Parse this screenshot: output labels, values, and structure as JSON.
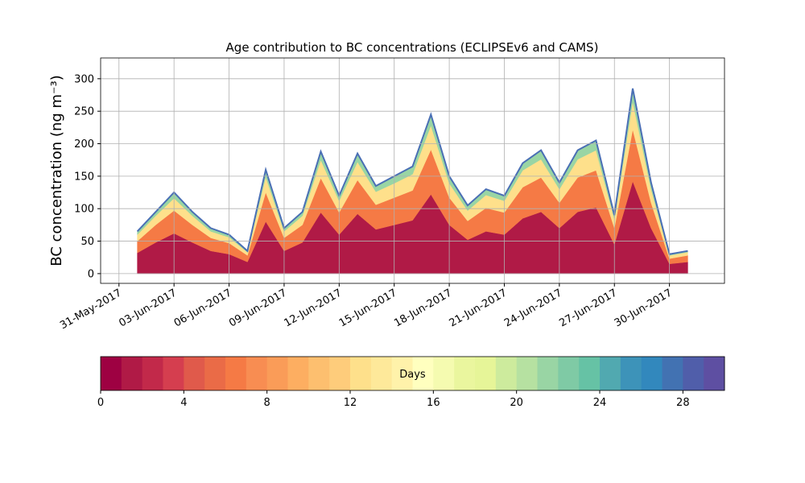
{
  "chart_data": {
    "type": "stacked_area",
    "title": "Age contribution to BC concentrations (ECLIPSEv6 and CAMS)",
    "ylabel": "BC concentration (ng m⁻³)",
    "x": [
      "2017-06-01",
      "2017-06-02",
      "2017-06-03",
      "2017-06-04",
      "2017-06-05",
      "2017-06-06",
      "2017-06-07",
      "2017-06-08",
      "2017-06-09",
      "2017-06-10",
      "2017-06-11",
      "2017-06-12",
      "2017-06-13",
      "2017-06-14",
      "2017-06-15",
      "2017-06-16",
      "2017-06-17",
      "2017-06-18",
      "2017-06-19",
      "2017-06-20",
      "2017-06-21",
      "2017-06-22",
      "2017-06-23",
      "2017-06-24",
      "2017-06-25",
      "2017-06-26",
      "2017-06-27",
      "2017-06-28",
      "2017-06-29",
      "2017-06-30",
      "2017-07-01"
    ],
    "series": [
      {
        "color": "#b01a46",
        "values": [
          32,
          48,
          62,
          48,
          35,
          30,
          18,
          80,
          35,
          48,
          94,
          60,
          92,
          68,
          75,
          82,
          122,
          75,
          52,
          65,
          60,
          85,
          95,
          70,
          95,
          102,
          45,
          142,
          70,
          15,
          18
        ]
      },
      {
        "color": "#f57a45",
        "values": [
          18,
          27,
          35,
          27,
          20,
          17,
          10,
          45,
          20,
          27,
          53,
          34,
          52,
          38,
          42,
          46,
          69,
          42,
          29,
          36,
          34,
          48,
          53,
          39,
          53,
          57,
          25,
          80,
          39,
          8,
          10
        ]
      },
      {
        "color": "#fee08b",
        "values": [
          10,
          14,
          19,
          14,
          10,
          9,
          5,
          24,
          10,
          14,
          28,
          18,
          28,
          20,
          22,
          25,
          37,
          22,
          16,
          20,
          18,
          26,
          28,
          21,
          28,
          31,
          14,
          43,
          21,
          5,
          5
        ]
      },
      {
        "color": "#99d5a4",
        "values": [
          5,
          6,
          9,
          6,
          5,
          4,
          2,
          11,
          5,
          6,
          13,
          8,
          13,
          9,
          11,
          12,
          17,
          11,
          8,
          9,
          8,
          11,
          14,
          10,
          14,
          15,
          6,
          20,
          10,
          2,
          2
        ]
      }
    ],
    "line_color": "#4a6fb5",
    "xlim": [
      "2017-05-30",
      "2017-07-03"
    ],
    "xticks": [
      {
        "value": "2017-05-31",
        "label": "31-May-2017"
      },
      {
        "value": "2017-06-03",
        "label": "03-Jun-2017"
      },
      {
        "value": "2017-06-06",
        "label": "06-Jun-2017"
      },
      {
        "value": "2017-06-09",
        "label": "09-Jun-2017"
      },
      {
        "value": "2017-06-12",
        "label": "12-Jun-2017"
      },
      {
        "value": "2017-06-15",
        "label": "15-Jun-2017"
      },
      {
        "value": "2017-06-18",
        "label": "18-Jun-2017"
      },
      {
        "value": "2017-06-21",
        "label": "21-Jun-2017"
      },
      {
        "value": "2017-06-24",
        "label": "24-Jun-2017"
      },
      {
        "value": "2017-06-27",
        "label": "27-Jun-2017"
      },
      {
        "value": "2017-06-30",
        "label": "30-Jun-2017"
      }
    ],
    "ylim": [
      -15,
      332
    ],
    "yticks": [
      0,
      50,
      100,
      150,
      200,
      250,
      300
    ],
    "grid": true,
    "colorbar": {
      "label": "Days",
      "lim": [
        0,
        30
      ],
      "ticks": [
        0,
        4,
        8,
        12,
        16,
        20,
        24,
        28
      ],
      "colors": [
        "#9e0142",
        "#b01a46",
        "#c2294a",
        "#d53e4f",
        "#e05a4b",
        "#ea6b47",
        "#f57a45",
        "#f88d52",
        "#fa9c58",
        "#fdae61",
        "#fdbf6f",
        "#fecc7b",
        "#fee08b",
        "#fee99a",
        "#fff2aa",
        "#ffffbf",
        "#f5fbb0",
        "#eaf69e",
        "#e6f598",
        "#cdeb9d",
        "#b6e1a1",
        "#99d5a4",
        "#7fcaa5",
        "#66c2a5",
        "#51a9b0",
        "#3d93b9",
        "#3288bd",
        "#4272b2",
        "#505eaa",
        "#5e4fa2"
      ]
    }
  }
}
